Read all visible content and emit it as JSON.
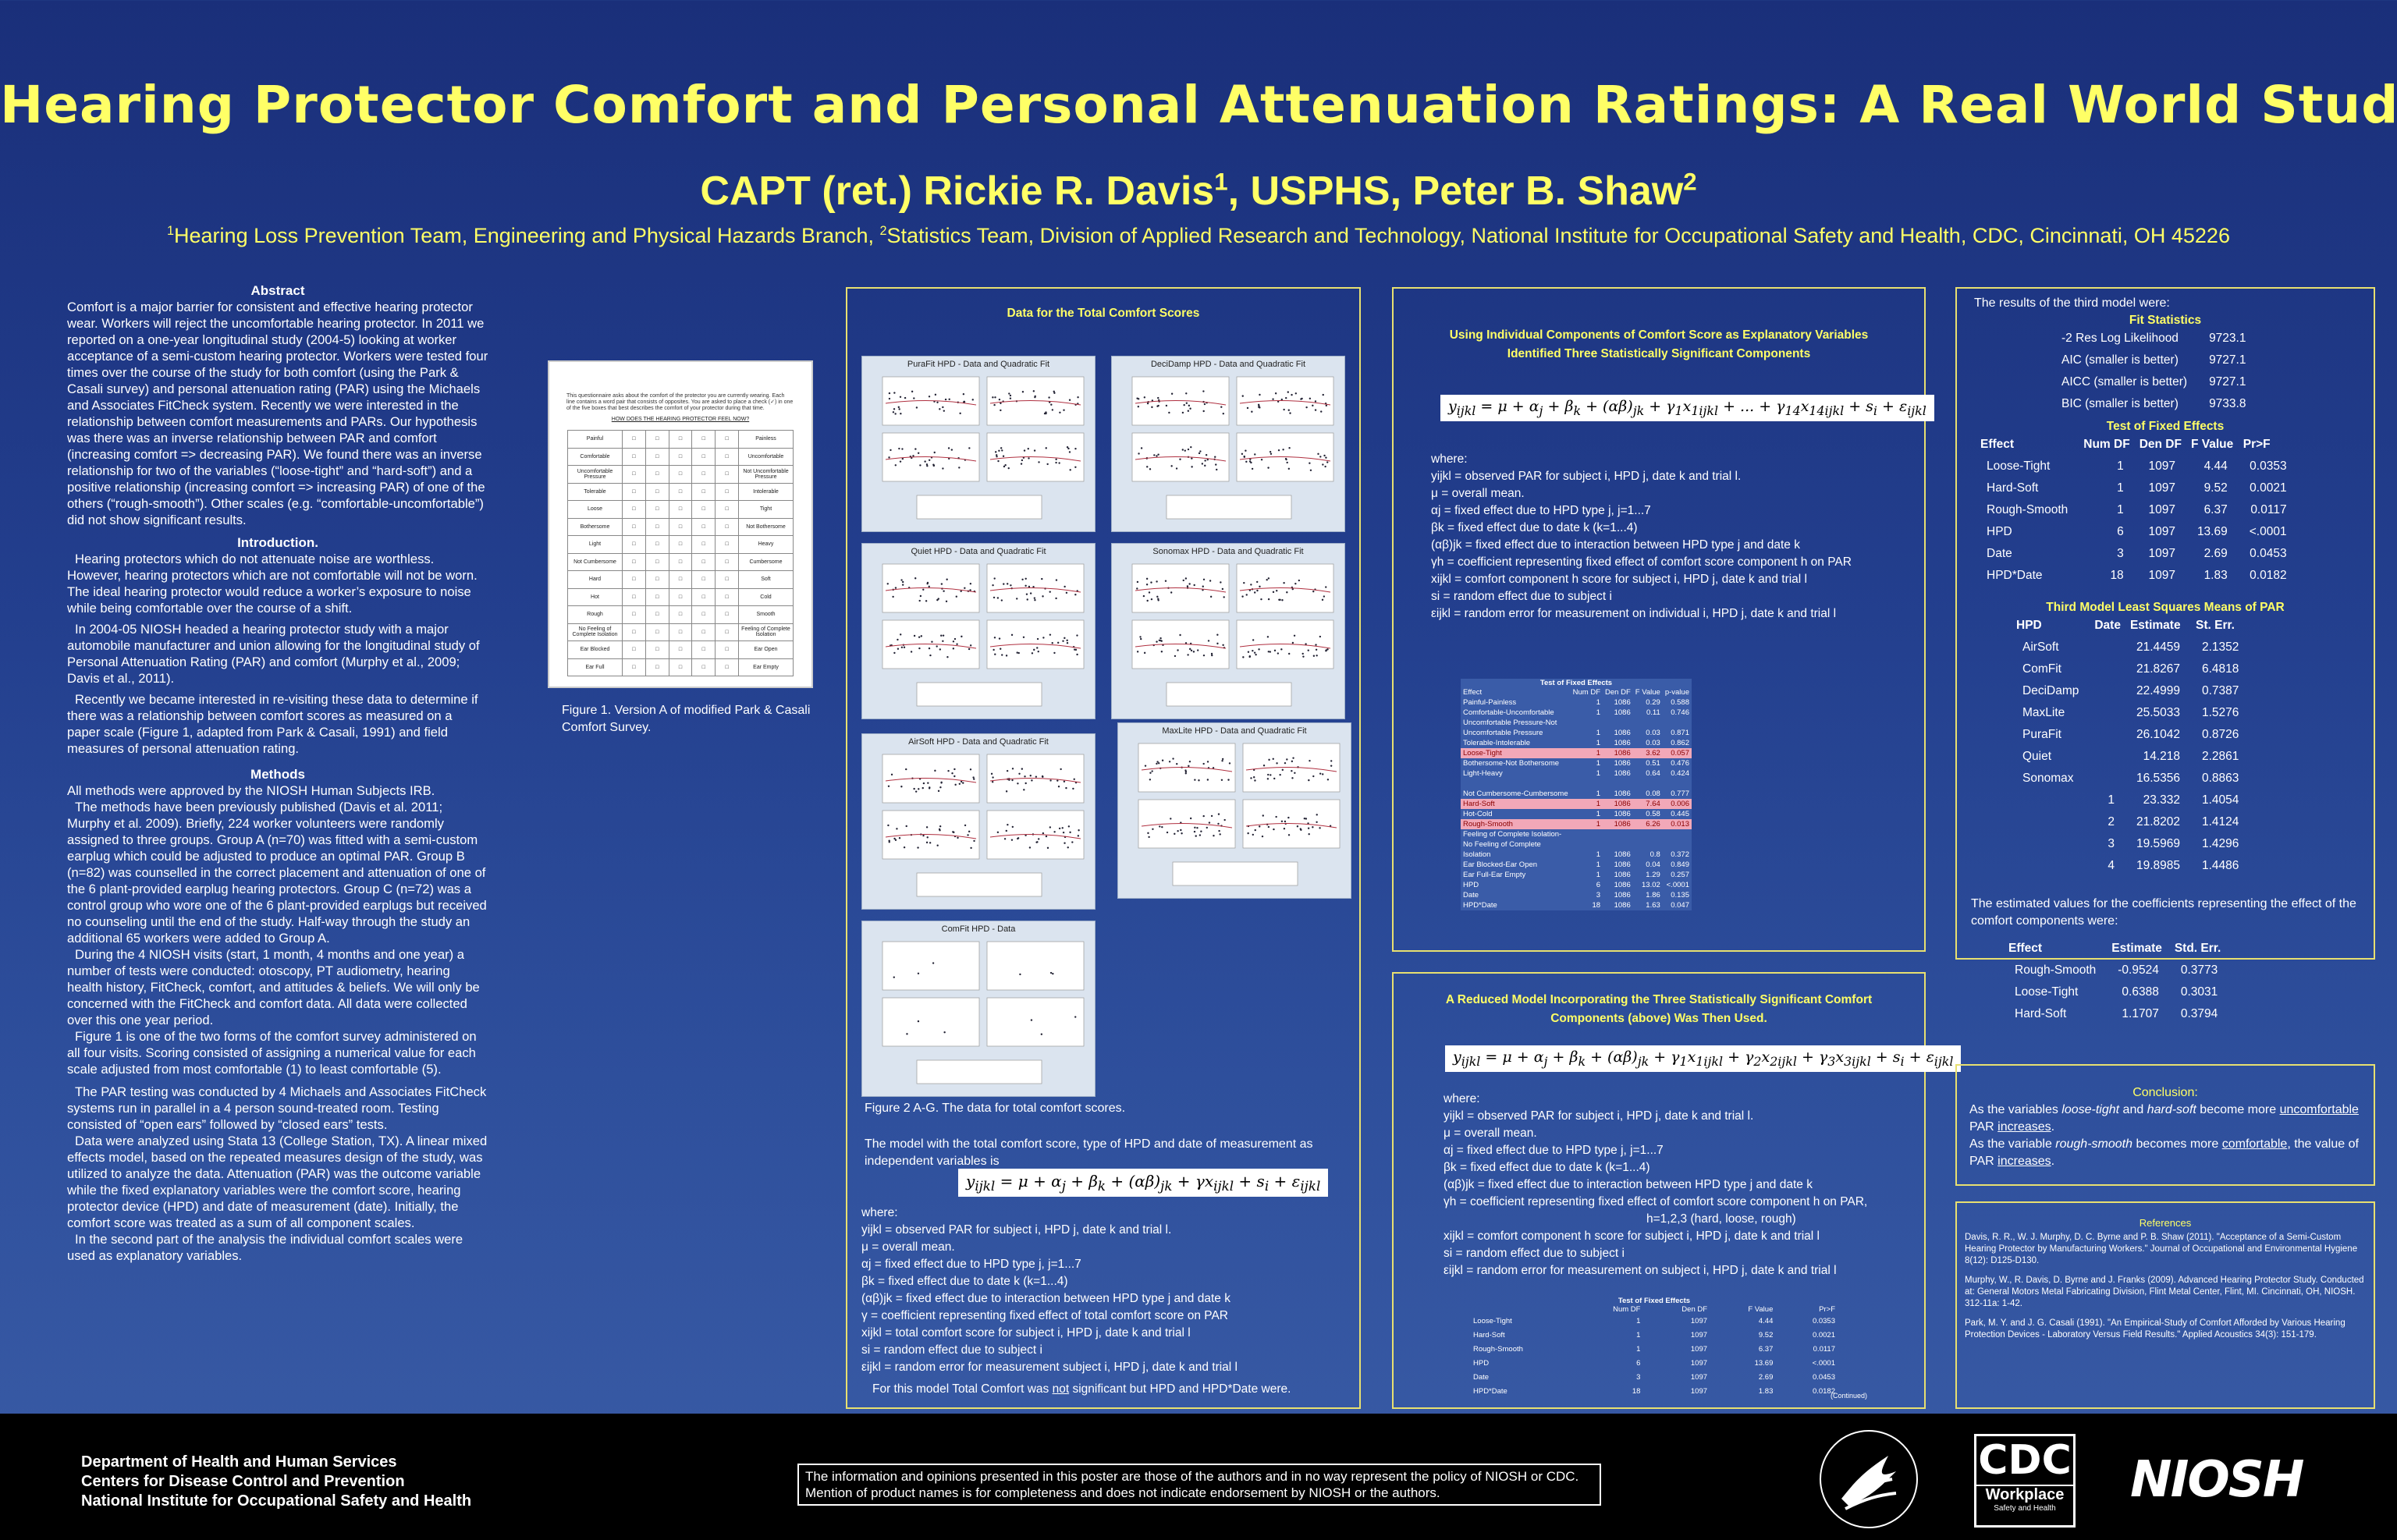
{
  "title": "Hearing Protector Comfort and Personal Attenuation Ratings: A Real World Study",
  "authors": {
    "prefix": "CAPT (ret.) Rickie R. Davis",
    "sup1": "1",
    "mid": ", USPHS, Peter B. Shaw",
    "sup2": "2"
  },
  "affiliation": {
    "sup1": "1",
    "part1": "Hearing Loss Prevention Team, Engineering and Physical Hazards Branch, ",
    "sup2": "2",
    "part2": "Statistics Team, Division of Applied Research and Technology, National Institute for Occupational Safety and Health, CDC, Cincinnati, OH 45226"
  },
  "left": {
    "abstract_h": "Abstract",
    "abstract": "Comfort is a major barrier for consistent and effective hearing protector wear. Workers will reject the uncomfortable hearing protector. In 2011 we reported on a one-year longitudinal study (2004-5) looking at worker acceptance of a semi-custom hearing protector. Workers were tested four times over the course of the study for both comfort (using the Park & Casali survey) and personal attenuation rating (PAR) using the Michaels and Associates FitCheck system. Recently we were interested in the relationship between comfort measurements and PARs. Our hypothesis was there was an inverse relationship between PAR and comfort (increasing comfort => decreasing PAR). We found there was an inverse relationship for two of the variables (“loose-tight” and “hard-soft”) and a positive relationship (increasing comfort => increasing PAR) of one of the others (“rough-smooth”). Other scales (e.g. “comfortable-uncomfortable”) did not show significant results.",
    "intro_h": "Introduction.",
    "intro1": "Hearing protectors which do not attenuate noise are worthless. However, hearing protectors which are not comfortable will not be worn. The ideal hearing protector would reduce a worker’s exposure to noise while being comfortable over the course of a shift.",
    "intro2": "In 2004-05 NIOSH headed a hearing protector study with a major automobile manufacturer and union allowing for the longitudinal study of Personal Attenuation Rating (PAR) and comfort (Murphy et al., 2009; Davis et al., 2011).",
    "intro3": "Recently we became interested in re-visiting these data to determine if there was a relationship between comfort scores as measured on a paper scale (Figure 1, adapted from Park & Casali, 1991) and field measures of personal attenuation rating.",
    "methods_h": "Methods",
    "m1": "All methods were approved by the NIOSH Human Subjects IRB.",
    "m2": "The methods have been previously published (Davis et al. 2011; Murphy et al. 2009). Briefly, 224 worker volunteers were randomly assigned to three groups. Group A (n=70) was fitted with a semi-custom earplug which could be adjusted to produce an optimal PAR. Group B (n=82) was counselled in the correct placement and attenuation of one of the 6 plant-provided earplug hearing protectors. Group C (n=72) was a control group who wore one of the 6 plant-provided earplugs but received no counseling until the end of the study. Half-way through the study an additional 65 workers were added to Group A.",
    "m3": "During the 4 NIOSH visits (start, 1 month, 4 months and one year) a number of tests were conducted: otoscopy, PT audiometry, hearing health history, FitCheck, comfort, and attitudes & beliefs. We will only be concerned with the FitCheck and comfort data. All data were collected over this one year period.",
    "m4": "Figure 1 is one of the two forms of the comfort survey administered on all four visits. Scoring consisted of assigning a numerical value for each scale adjusted from most comfortable (1) to least comfortable (5).",
    "m5": "The PAR testing was conducted by 4 Michaels and Associates FitCheck systems run in parallel in a 4 person sound-treated room. Testing consisted of “open ears” followed by “closed ears” tests.",
    "m6": "Data were analyzed using Stata 13 (College Station, TX). A linear mixed effects model, based on the repeated measures design of the study, was utilized to analyze the data. Attenuation (PAR) was the outcome variable while the fixed explanatory variables were the comfort score, hearing protector device (HPD) and date of measurement (date). Initially, the comfort score was treated as a sum of all component scales.",
    "m7": "In the second part of the analysis the individual comfort scales were used as explanatory variables."
  },
  "survey": {
    "instructions": "This questionnaire asks about the comfort of the protector you are currently wearing. Each line contains a word pair that consists of opposites. You are asked to place a check (✓) in one of the five boxes that best describes the comfort of your protector during that time.",
    "heading": "HOW DOES THE HEARING PROTECTOR FEEL NOW?",
    "rows": [
      [
        "Painful",
        "Painless"
      ],
      [
        "Comfortable",
        "Uncomfortable"
      ],
      [
        "Uncomfortable Pressure",
        "Not Uncomfortable Pressure"
      ],
      [
        "Tolerable",
        "Intolerable"
      ],
      [
        "Loose",
        "Tight"
      ],
      [
        "Bothersome",
        "Not Bothersome"
      ],
      [
        "Light",
        "Heavy"
      ],
      [
        "Not Cumbersome",
        "Cumbersome"
      ],
      [
        "Hard",
        "Soft"
      ],
      [
        "Hot",
        "Cold"
      ],
      [
        "Rough",
        "Smooth"
      ],
      [
        "No Feeling of Complete Isolation",
        "Feeling of Complete Isolation"
      ],
      [
        "Ear Blocked",
        "Ear Open"
      ],
      [
        "Ear Full",
        "Ear Empty"
      ]
    ],
    "caption": "Figure 1. Version A of modified Park & Casali Comfort Survey."
  },
  "box1": {
    "title": "Data for the Total Comfort Scores",
    "plots": [
      {
        "title": "PuraFit HPD - Data and Quadratic Fit"
      },
      {
        "title": "DeciDamp HPD - Data and Quadratic Fit"
      },
      {
        "title": "Quiet HPD - Data and Quadratic Fit"
      },
      {
        "title": "Sonomax HPD - Data and Quadratic Fit"
      },
      {
        "title": "AirSoft HPD - Data and Quadratic Fit"
      },
      {
        "title": "MaxLite HPD - Data and Quadratic Fit"
      },
      {
        "title": "ComFit HPD - Data"
      }
    ],
    "caption": "Figure 2 A-G. The data for total comfort scores.",
    "model_intro": "The model with the total comfort score, type of HPD and date of measurement as independent variables is",
    "where": "where:",
    "defs": [
      "yijkl = observed PAR for subject i, HPD j, date k and trial l.",
      "μ = overall mean.",
      "αj = fixed effect due to HPD type j, j=1...7",
      "βk = fixed effect due to date k (k=1...4)",
      "(αβ)jk = fixed effect due to interaction between HPD type j and date k",
      "γ = coefficient representing fixed effect of total comfort score on PAR",
      "xijkl = total comfort score for subject i, HPD j, date k and trial l",
      "si = random effect due to subject i",
      "εijkl = random error for measurement subject i, HPD j, date k and trial l"
    ],
    "footer_pre": "For this model Total Comfort was ",
    "footer_not": "not",
    "footer_post": " significant but HPD and HPD*Date were."
  },
  "box2": {
    "title": "Using Individual Components of Comfort Score as Explanatory Variables Identified Three Statistically Significant Components",
    "where": "where:",
    "defs": [
      "yijkl = observed PAR for subject i, HPD j, date k and trial l.",
      "μ = overall mean.",
      "αj = fixed effect due to HPD type j, j=1...7",
      "βk = fixed effect due to date k (k=1...4)",
      "(αβ)jk = fixed effect due to interaction between HPD type j and date k",
      "γh = coefficient representing fixed effect of comfort score component h on PAR",
      "xijkl = comfort component h score for subject i, HPD j, date k and trial l",
      "si = random effect due to subject i",
      "εijkl = random error for measurement on individual i, HPD j, date k and trial l"
    ],
    "table_title": "Test of Fixed Effects",
    "table_head": [
      "Effect",
      "Num DF",
      "Den DF",
      "F Value",
      "p-value"
    ],
    "rows": [
      {
        "e": "Painful-Painless",
        "a": "1",
        "b": "1086",
        "c": "0.29",
        "d": "0.588",
        "hl": false
      },
      {
        "e": "Comfortable-Uncomfortable",
        "a": "1",
        "b": "1086",
        "c": "0.11",
        "d": "0.746",
        "hl": false
      },
      {
        "e": "Uncomfortable Pressure-Not",
        "a": "",
        "b": "",
        "c": "",
        "d": "",
        "hl": false
      },
      {
        "e": "Uncomfortable Pressure",
        "a": "1",
        "b": "1086",
        "c": "0.03",
        "d": "0.871",
        "hl": false
      },
      {
        "e": "Tolerable-Intolerable",
        "a": "1",
        "b": "1086",
        "c": "0.03",
        "d": "0.862",
        "hl": false
      },
      {
        "e": "Loose-Tight",
        "a": "1",
        "b": "1086",
        "c": "3.62",
        "d": "0.057",
        "hl": true
      },
      {
        "e": "Bothersome-Not Bothersome",
        "a": "1",
        "b": "1086",
        "c": "0.51",
        "d": "0.476",
        "hl": false
      },
      {
        "e": "Light-Heavy",
        "a": "1",
        "b": "1086",
        "c": "0.64",
        "d": "0.424",
        "hl": false
      },
      {
        "e": "",
        "a": "",
        "b": "",
        "c": "",
        "d": "",
        "hl": false
      },
      {
        "e": "Not Cumbersome-Cumbersome",
        "a": "1",
        "b": "1086",
        "c": "0.08",
        "d": "0.777",
        "hl": false
      },
      {
        "e": "Hard-Soft",
        "a": "1",
        "b": "1086",
        "c": "7.64",
        "d": "0.006",
        "hl": true
      },
      {
        "e": "Hot-Cold",
        "a": "1",
        "b": "1086",
        "c": "0.58",
        "d": "0.445",
        "hl": false
      },
      {
        "e": "Rough-Smooth",
        "a": "1",
        "b": "1086",
        "c": "6.26",
        "d": "0.013",
        "hl": true
      },
      {
        "e": "Feeling of Complete Isolation-",
        "a": "",
        "b": "",
        "c": "",
        "d": "",
        "hl": false
      },
      {
        "e": "No Feeling of Complete",
        "a": "",
        "b": "",
        "c": "",
        "d": "",
        "hl": false
      },
      {
        "e": "Isolation",
        "a": "1",
        "b": "1086",
        "c": "0.8",
        "d": "0.372",
        "hl": false
      },
      {
        "e": "Ear Blocked-Ear Open",
        "a": "1",
        "b": "1086",
        "c": "0.04",
        "d": "0.849",
        "hl": false
      },
      {
        "e": "Ear Full-Ear Empty",
        "a": "1",
        "b": "1086",
        "c": "1.29",
        "d": "0.257",
        "hl": false
      },
      {
        "e": "HPD",
        "a": "6",
        "b": "1086",
        "c": "13.02",
        "d": "<.0001",
        "hl": false
      },
      {
        "e": "Date",
        "a": "3",
        "b": "1086",
        "c": "1.86",
        "d": "0.135",
        "hl": false
      },
      {
        "e": "HPD*Date",
        "a": "18",
        "b": "1086",
        "c": "1.63",
        "d": "0.047",
        "hl": false
      }
    ]
  },
  "box3": {
    "title": "A Reduced Model Incorporating the Three Statistically Significant Comfort Components (above) Was Then Used.",
    "where": "where:",
    "defs": [
      "yijkl = observed PAR for subject i, HPD j, date k and trial l.",
      "μ = overall mean.",
      "αj = fixed effect due to HPD type j, j=1...7",
      "βk = fixed effect due to date k (k=1...4)",
      "(αβ)jk = fixed effect due to interaction between HPD type j and date k",
      "γh = coefficient representing fixed effect of comfort score component h on PAR,",
      "h=1,2,3 (hard, loose, rough)",
      "xijkl = comfort component h score for subject i, HPD j, date k and trial l",
      "si = random effect due to subject i",
      "εijkl = random error for measurement on subject i, HPD j, date k and trial l"
    ],
    "table_title": "Test of Fixed Effects",
    "table_head": [
      "",
      "Num DF",
      "Den DF",
      "F Value",
      "Pr>F"
    ],
    "rows": [
      [
        "Loose-Tight",
        "1",
        "1097",
        "4.44",
        "0.0353"
      ],
      [
        "Hard-Soft",
        "1",
        "1097",
        "9.52",
        "0.0021"
      ],
      [
        "Rough-Smooth",
        "1",
        "1097",
        "6.37",
        "0.0117"
      ],
      [
        "HPD",
        "6",
        "1097",
        "13.69",
        "<.0001"
      ],
      [
        "Date",
        "3",
        "1097",
        "2.69",
        "0.0453"
      ],
      [
        "HPD*Date",
        "18",
        "1097",
        "1.83",
        "0.0182"
      ]
    ],
    "continued": "(Continued)"
  },
  "box4": {
    "intro": "The results of the third model were:",
    "fit_h": "Fit Statistics",
    "fit": [
      [
        "-2 Res Log Likelihood",
        "9723.1"
      ],
      [
        "AIC (smaller is better)",
        "9727.1"
      ],
      [
        "AICC (smaller is better)",
        "9727.1"
      ],
      [
        "BIC (smaller is better)",
        "9733.8"
      ]
    ],
    "fe_h": "Test of Fixed Effects",
    "fe_head": [
      "Effect",
      "Num DF",
      "Den DF",
      "F Value",
      "Pr>F"
    ],
    "fe": [
      [
        "Loose-Tight",
        "1",
        "1097",
        "4.44",
        "0.0353"
      ],
      [
        "Hard-Soft",
        "1",
        "1097",
        "9.52",
        "0.0021"
      ],
      [
        "Rough-Smooth",
        "1",
        "1097",
        "6.37",
        "0.0117"
      ],
      [
        "HPD",
        "6",
        "1097",
        "13.69",
        "<.0001"
      ],
      [
        "Date",
        "3",
        "1097",
        "2.69",
        "0.0453"
      ],
      [
        "HPD*Date",
        "18",
        "1097",
        "1.83",
        "0.0182"
      ]
    ],
    "ls_h": "Third Model Least Squares Means of PAR",
    "ls_head": [
      "HPD",
      "Date",
      "Estimate",
      "St. Err."
    ],
    "ls": [
      [
        "AirSoft",
        "",
        "21.4459",
        "2.1352"
      ],
      [
        "ComFit",
        "",
        "21.8267",
        "6.4818"
      ],
      [
        "DeciDamp",
        "",
        "22.4999",
        "0.7387"
      ],
      [
        "MaxLite",
        "",
        "25.5033",
        "1.5276"
      ],
      [
        "PuraFit",
        "",
        "26.1042",
        "0.8726"
      ],
      [
        "Quiet",
        "",
        "14.218",
        "2.2861"
      ],
      [
        "Sonomax",
        "",
        "16.5356",
        "0.8863"
      ],
      [
        "",
        "1",
        "23.332",
        "1.4054"
      ],
      [
        "",
        "2",
        "21.8202",
        "1.4124"
      ],
      [
        "",
        "3",
        "19.5969",
        "1.4296"
      ],
      [
        "",
        "4",
        "19.8985",
        "1.4486"
      ]
    ],
    "coef_intro": "The estimated values for the coefficients representing the effect of the comfort components were:",
    "coef_head": [
      "Effect",
      "Estimate",
      "Std. Err."
    ],
    "coef": [
      [
        "Rough-Smooth",
        "-0.9524",
        "0.3773"
      ],
      [
        "Loose-Tight",
        "0.6388",
        "0.3031"
      ],
      [
        "Hard-Soft",
        "1.1707",
        "0.3794"
      ]
    ]
  },
  "conclusion": {
    "title": "Conclusion:",
    "l1a": "As the variables ",
    "l1b": "loose-tight",
    "l1c": " and ",
    "l1d": "hard-soft",
    "l1e": " become more ",
    "l1f": "uncomfortable",
    "l1g": " PAR ",
    "l1h": "increases",
    "l1i": ".",
    "l2a": "As the variable ",
    "l2b": "rough-smooth",
    "l2c": " becomes more ",
    "l2d": "comfortable",
    "l2e": ", the value of PAR ",
    "l2f": "increases",
    "l2g": "."
  },
  "references": {
    "title": "References",
    "r1": "Davis, R. R., W. J. Murphy, D. C. Byrne and P. B. Shaw (2011). \"Acceptance of a Semi-Custom Hearing Protector by Manufacturing Workers.\" Journal of Occupational and Environmental Hygiene 8(12): D125-D130.",
    "r2": "Murphy, W., R. Davis, D. Byrne and J. Franks (2009). Advanced Hearing Protector Study. Conducted at: General Motors Metal Fabricating Division, Flint Metal Center, Flint, MI. Cincinnati, OH, NIOSH. 312-11a: 1-42.",
    "r3": "Park, M. Y. and J. G. Casali (1991). \"An Empirical-Study of Comfort Afforded by Various Hearing Protection Devices - Laboratory Versus Field Results.\" Applied Acoustics 34(3): 151-179."
  },
  "footer": {
    "dept1": "Department of Health and Human Services",
    "dept2": "Centers for Disease Control and Prevention",
    "dept3": "National Institute for Occupational Safety and Health",
    "disclaimer": "The information and opinions presented in this poster are those of the authors and in no way represent the policy of NIOSH or CDC. Mention of product names is for completeness and does not indicate endorsement by NIOSH or the authors.",
    "cdc": "CDC",
    "cdc_sub1": "Workplace",
    "cdc_sub2": "Safety and Health",
    "niosh": "NIOSH"
  }
}
